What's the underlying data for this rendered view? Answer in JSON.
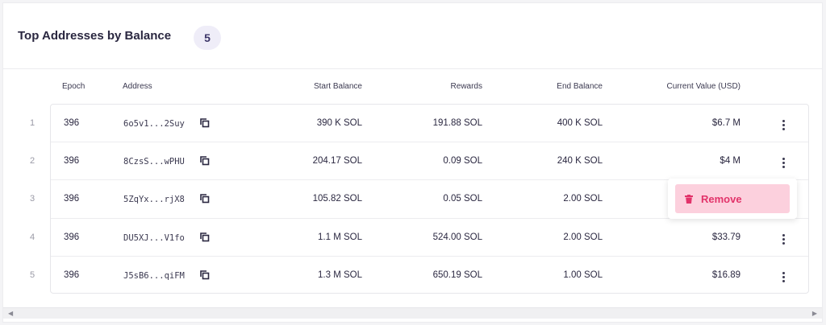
{
  "header": {
    "title": "Top Addresses by Balance",
    "count": "5"
  },
  "columns": {
    "epoch": "Epoch",
    "address": "Address",
    "start_balance": "Start Balance",
    "rewards": "Rewards",
    "end_balance": "End Balance",
    "current_value": "Current Value (USD)"
  },
  "rows": [
    {
      "index": "1",
      "epoch": "396",
      "address": "6o5v1...2Suy",
      "start_balance": "390 K SOL",
      "rewards": "191.88 SOL",
      "end_balance": "400 K SOL",
      "current_value": "$6.7 M"
    },
    {
      "index": "2",
      "epoch": "396",
      "address": "8CzsS...wPHU",
      "start_balance": "204.17 SOL",
      "rewards": "0.09 SOL",
      "end_balance": "240 K SOL",
      "current_value": "$4 M"
    },
    {
      "index": "3",
      "epoch": "396",
      "address": "5ZqYx...rjX8",
      "start_balance": "105.82 SOL",
      "rewards": "0.05 SOL",
      "end_balance": "2.00 SOL",
      "current_value": ""
    },
    {
      "index": "4",
      "epoch": "396",
      "address": "DU5XJ...V1fo",
      "start_balance": "1.1 M SOL",
      "rewards": "524.00 SOL",
      "end_balance": "2.00 SOL",
      "current_value": "$33.79"
    },
    {
      "index": "5",
      "epoch": "396",
      "address": "J5sB6...qiFM",
      "start_balance": "1.3 M SOL",
      "rewards": "650.19 SOL",
      "end_balance": "1.00 SOL",
      "current_value": "$16.89"
    }
  ],
  "context_menu": {
    "remove_label": "Remove",
    "icon": "trash-icon"
  },
  "scrollbar": {
    "left_arrow": "◀",
    "right_arrow": "▶"
  },
  "colors": {
    "accent": "#e2336a",
    "badge_bg": "#efedf8",
    "menu_item_bg": "#fcd0dd"
  }
}
